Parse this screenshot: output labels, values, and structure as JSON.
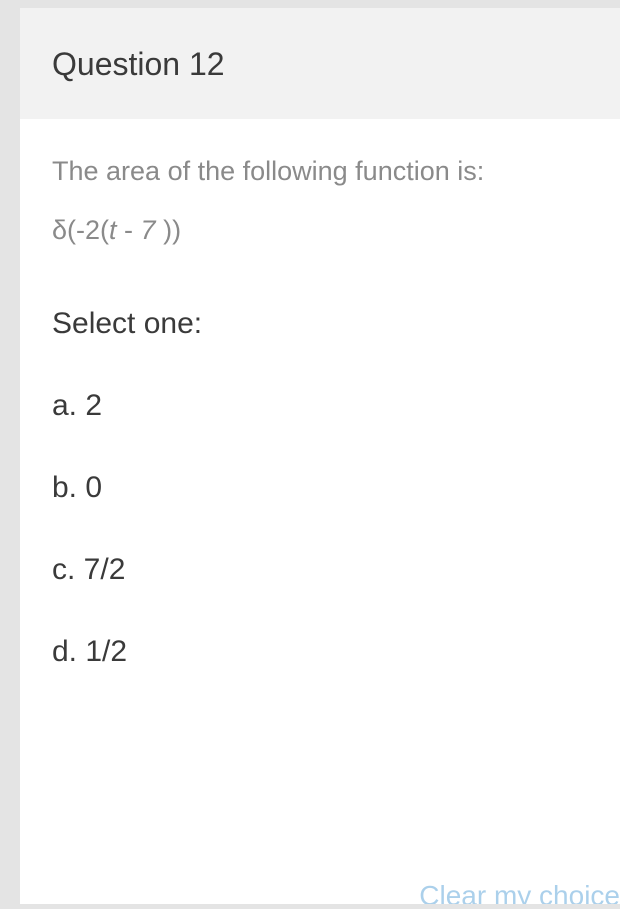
{
  "header": {
    "title": "Question 12"
  },
  "body": {
    "prompt": "The area of the following function is:",
    "formula_prefix": "δ(-2(",
    "formula_var": "t",
    "formula_mid": " - ",
    "formula_num": "7",
    "formula_suffix": " ))",
    "select_label": "Select one:"
  },
  "options": {
    "a": "a. 2",
    "b": "b. 0",
    "c": "c. 7/2",
    "d": "d. 1/2"
  },
  "footer": {
    "clear_label": "Clear my choice"
  },
  "colors": {
    "page_bg": "#e4e4e4",
    "card_bg": "#ffffff",
    "header_bg": "#f2f2f2",
    "title_color": "#3a3a3a",
    "muted_color": "#8a8a8a",
    "link_color": "#5aa3d8"
  }
}
